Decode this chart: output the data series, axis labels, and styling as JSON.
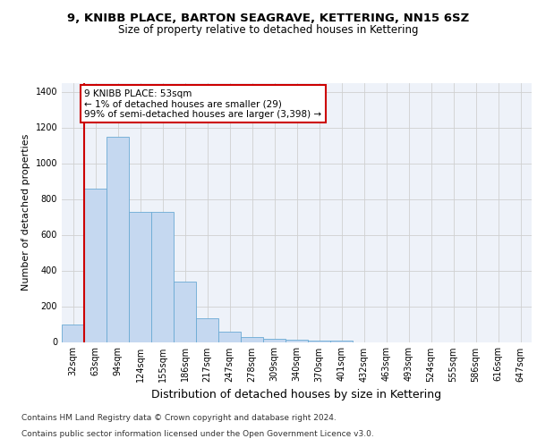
{
  "title1": "9, KNIBB PLACE, BARTON SEAGRAVE, KETTERING, NN15 6SZ",
  "title2": "Size of property relative to detached houses in Kettering",
  "xlabel": "Distribution of detached houses by size in Kettering",
  "ylabel": "Number of detached properties",
  "categories": [
    "32sqm",
    "63sqm",
    "94sqm",
    "124sqm",
    "155sqm",
    "186sqm",
    "217sqm",
    "247sqm",
    "278sqm",
    "309sqm",
    "340sqm",
    "370sqm",
    "401sqm",
    "432sqm",
    "463sqm",
    "493sqm",
    "524sqm",
    "555sqm",
    "586sqm",
    "616sqm",
    "647sqm"
  ],
  "values": [
    100,
    860,
    1150,
    730,
    730,
    340,
    135,
    60,
    30,
    20,
    15,
    10,
    10,
    0,
    0,
    0,
    0,
    0,
    0,
    0,
    0
  ],
  "bar_color": "#c5d8f0",
  "bar_edge_color": "#6aaad4",
  "red_line_x": 0.5,
  "red_line_color": "#cc0000",
  "annotation_text": "9 KNIBB PLACE: 53sqm\n← 1% of detached houses are smaller (29)\n99% of semi-detached houses are larger (3,398) →",
  "annotation_box_facecolor": "#ffffff",
  "annotation_box_edgecolor": "#cc0000",
  "ylim": [
    0,
    1450
  ],
  "yticks": [
    0,
    200,
    400,
    600,
    800,
    1000,
    1200,
    1400
  ],
  "footnote1": "Contains HM Land Registry data © Crown copyright and database right 2024.",
  "footnote2": "Contains public sector information licensed under the Open Government Licence v3.0.",
  "bg_color": "#eef2f9",
  "grid_color": "#d0d0d0",
  "title1_fontsize": 9.5,
  "title2_fontsize": 8.5,
  "ylabel_fontsize": 8,
  "xlabel_fontsize": 9,
  "tick_fontsize": 7,
  "footnote_fontsize": 6.5
}
